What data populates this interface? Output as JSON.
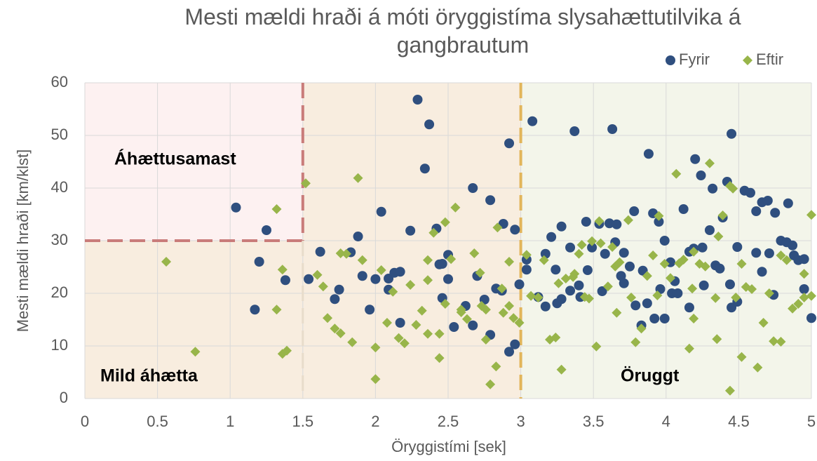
{
  "chart_data": {
    "type": "scatter",
    "title": "Mesti mældi hraði á móti öryggistíma slysahættutilvika á gangbrautum",
    "x_label": "Öryggistími [sek]",
    "y_label": "Mesti mældi hraði [km/klst]",
    "xlim": [
      0,
      5
    ],
    "ylim": [
      0,
      60
    ],
    "xticks": [
      0,
      0.5,
      1,
      1.5,
      2,
      2.5,
      3,
      3.5,
      4,
      4.5,
      5
    ],
    "yticks": [
      0,
      10,
      20,
      30,
      40,
      50,
      60
    ],
    "grid": true,
    "legend": "top-right",
    "thresholds": {
      "x": [
        1.5,
        3
      ],
      "y": 30
    },
    "annotations": [
      "Áhættusamast",
      "Mild áhætta",
      "Öruggt"
    ],
    "series": [
      {
        "name": "Fyrir",
        "color": "#2f4f7f",
        "marker": "circle",
        "x": [
          1.04,
          1.25,
          1.2,
          1.17,
          1.38,
          1.54,
          1.62,
          1.75,
          1.72,
          1.83,
          1.88,
          1.91,
          1.96,
          2.0,
          2.04,
          2.09,
          2.09,
          2.13,
          2.17,
          2.17,
          2.24,
          2.29,
          2.34,
          2.37,
          2.42,
          2.44,
          2.46,
          2.46,
          2.5,
          2.5,
          2.54,
          2.62,
          2.67,
          2.67,
          2.7,
          2.75,
          2.79,
          2.79,
          2.83,
          2.87,
          2.88,
          2.92,
          2.92,
          2.96,
          2.96,
          2.99,
          3.04,
          3.04,
          3.08,
          3.12,
          3.17,
          3.17,
          3.21,
          3.24,
          3.25,
          3.28,
          3.28,
          3.34,
          3.34,
          3.37,
          3.4,
          3.41,
          3.45,
          3.46,
          3.49,
          3.54,
          3.56,
          3.58,
          3.61,
          3.63,
          3.65,
          3.66,
          3.69,
          3.71,
          3.71,
          3.75,
          3.78,
          3.79,
          3.83,
          3.84,
          3.88,
          3.87,
          3.91,
          3.92,
          3.95,
          3.96,
          3.99,
          3.99,
          4.03,
          4.04,
          4.06,
          4.08,
          4.12,
          4.16,
          4.16,
          4.19,
          4.2,
          4.24,
          4.25,
          4.26,
          4.3,
          4.32,
          4.34,
          4.37,
          4.39,
          4.42,
          4.44,
          4.45,
          4.45,
          4.49,
          4.49,
          4.54,
          4.58,
          4.62,
          4.62,
          4.66,
          4.66,
          4.7,
          4.71,
          4.75,
          4.74,
          4.79,
          4.83,
          4.84,
          4.87,
          4.88,
          4.91,
          4.95,
          4.95,
          5.0
        ],
        "values": [
          36.3,
          32,
          26,
          16.9,
          22.5,
          22.7,
          27.9,
          20.7,
          18.9,
          27.8,
          30.8,
          23.3,
          16.9,
          22.7,
          35.5,
          20.7,
          22.8,
          23.9,
          24.1,
          14.4,
          31.9,
          56.8,
          43.7,
          52.1,
          32.3,
          25.5,
          25.6,
          19.1,
          27.3,
          22.7,
          13.6,
          17.6,
          40,
          13.9,
          23.3,
          18.8,
          37.7,
          12.1,
          20.9,
          20.5,
          33.2,
          48.5,
          8.9,
          32.1,
          10.3,
          21.7,
          26.4,
          24.5,
          52.7,
          19.3,
          17.5,
          27.5,
          30.7,
          24.5,
          18.1,
          18.9,
          32.7,
          28.7,
          20.5,
          50.8,
          21.5,
          19.3,
          33.6,
          24.4,
          28.7,
          33.2,
          20.4,
          27.5,
          33.3,
          51.2,
          29.7,
          33.1,
          23.3,
          21.9,
          27.7,
          25.1,
          35.6,
          17.7,
          13.9,
          24.3,
          46.5,
          18.1,
          35.2,
          15.2,
          33.6,
          20.8,
          30,
          15.2,
          25.9,
          20,
          22.3,
          20,
          36,
          27.9,
          17.3,
          28.5,
          45.5,
          42.4,
          28.7,
          21.5,
          32,
          39.9,
          25.3,
          24.7,
          34.4,
          41.2,
          21.7,
          50.3,
          17.3,
          28.8,
          18.4,
          39.5,
          39.1,
          35.6,
          27.7,
          24.1,
          37.3,
          37.6,
          27.6,
          35.3,
          19.7,
          30,
          29.7,
          37.1,
          29.1,
          27.2,
          26.3,
          26.5,
          20.8,
          15.3
        ]
      },
      {
        "name": "Eftir",
        "color": "#98b54a",
        "marker": "diamond",
        "x": [
          0.56,
          0.76,
          1.32,
          1.32,
          1.36,
          1.36,
          1.39,
          1.52,
          1.6,
          1.64,
          1.67,
          1.72,
          1.76,
          1.76,
          1.8,
          1.84,
          1.88,
          1.91,
          2.0,
          2.0,
          2.04,
          2.08,
          2.12,
          2.16,
          2.2,
          2.24,
          2.28,
          2.32,
          2.36,
          2.36,
          2.36,
          2.4,
          2.44,
          2.44,
          2.48,
          2.48,
          2.52,
          2.55,
          2.59,
          2.59,
          2.63,
          2.68,
          2.72,
          2.73,
          2.76,
          2.76,
          2.79,
          2.83,
          2.84,
          2.87,
          2.88,
          2.92,
          2.92,
          2.95,
          2.99,
          3.04,
          3.07,
          3.12,
          3.16,
          3.2,
          3.24,
          3.26,
          3.28,
          3.31,
          3.36,
          3.37,
          3.4,
          3.42,
          3.44,
          3.47,
          3.49,
          3.52,
          3.54,
          3.55,
          3.6,
          3.63,
          3.65,
          3.66,
          3.68,
          3.74,
          3.76,
          3.79,
          3.83,
          3.87,
          3.91,
          3.94,
          3.95,
          3.99,
          4.03,
          4.07,
          4.09,
          4.12,
          4.16,
          4.18,
          4.19,
          4.19,
          4.23,
          4.27,
          4.3,
          4.34,
          4.35,
          4.36,
          4.39,
          4.44,
          4.44,
          4.46,
          4.48,
          4.52,
          4.52,
          4.55,
          4.59,
          4.63,
          4.67,
          4.71,
          4.74,
          4.79,
          4.79,
          4.83,
          4.87,
          4.91,
          4.95,
          4.95,
          5.0,
          5.0
        ],
        "values": [
          26,
          8.9,
          36,
          16.9,
          24.5,
          8.5,
          9.1,
          40.9,
          23.5,
          21.3,
          15.3,
          13.3,
          12.4,
          27.6,
          27.5,
          10.7,
          41.9,
          26.3,
          9.7,
          3.7,
          24.4,
          14.4,
          20.3,
          11.5,
          10.5,
          21.6,
          14,
          16.7,
          26.3,
          22.5,
          12.3,
          31.5,
          12.3,
          7.7,
          18,
          33.5,
          26.5,
          36.3,
          16.9,
          16.4,
          15.1,
          27.6,
          23.9,
          17.6,
          16.9,
          11.2,
          2.7,
          6.1,
          32.5,
          20.9,
          16.3,
          17.6,
          26,
          15.3,
          14.4,
          27.3,
          19.5,
          19.2,
          26.3,
          11.2,
          11.6,
          21.9,
          5.5,
          22.8,
          23.1,
          23.7,
          27.5,
          29.2,
          19.3,
          19,
          29.9,
          9.9,
          33.7,
          29.5,
          21.3,
          28.8,
          25.1,
          16.3,
          25.9,
          33.9,
          19.2,
          10.7,
          13.3,
          23.3,
          27.2,
          19.6,
          34.7,
          25.6,
          22.9,
          42.7,
          25.7,
          26.4,
          9.5,
          20.9,
          15.2,
          27.9,
          25.6,
          25.1,
          44.7,
          19.1,
          11.3,
          30.8,
          34.8,
          40.4,
          1.5,
          39.9,
          19.2,
          25.6,
          7.9,
          21.2,
          20.8,
          5.9,
          14.4,
          20,
          10.9,
          27.2,
          10.8,
          26.3,
          17.1,
          18,
          19.2,
          23.7,
          34.9,
          19.5
        ]
      }
    ]
  }
}
